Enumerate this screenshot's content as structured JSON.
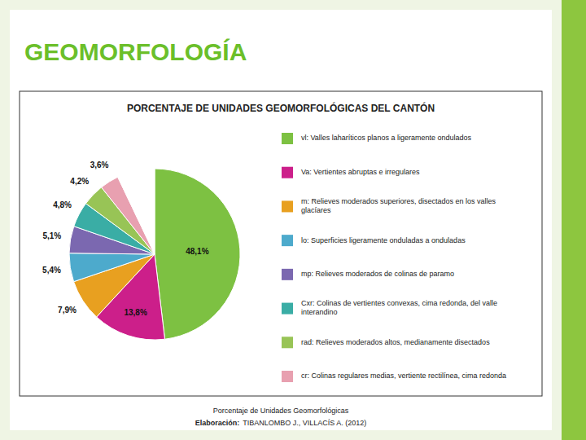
{
  "chart_data": {
    "type": "pie",
    "title": "PORCENTAJE DE UNIDADES GEOMORFOLÓGICAS DEL CANTÓN",
    "subtitle": "GEOMORFOLOGÍA",
    "annotations": [
      "Porcentaje de Unidades Geomorfológicas",
      "Elaboración:",
      "TIBANLOMBO J., VILLACÍS A. (2012)"
    ],
    "categories": [
      "vl: Valles laharíticos planos a ligeramente ondulados",
      "Va: Vertientes abruptas e irregulares",
      "m: Relieves moderados superiores, disectados en los valles\nglacíares",
      "lo: Superficies ligeramente onduladas a onduladas",
      "mp: Relieves moderados de colinas de paramo",
      "Cxr: Colinas de vertientes convexas, cima redonda, del valle\ninterandino",
      "rad: Relieves moderados altos, medianamente disectados",
      "cr: Colinas regulares medias, vertiente rectilínea, cima redonda",
      null
    ],
    "values": [
      48.1,
      13.8,
      7.9,
      5.4,
      5.1,
      4.8,
      4.2,
      3.6,
      7.1
    ],
    "value_labels": [
      "48,1%",
      "13,8%",
      "7,9%",
      "5,4%",
      "5,1%",
      "4,8%",
      "4,2%",
      "3,6%",
      null
    ],
    "colors": [
      "#7DC142",
      "#CC1F8A",
      "#E8A020",
      "#4DAACC",
      "#7B68B0",
      "#3AADA5",
      "#98C456",
      "#E8A0B0",
      "#FFFFFF"
    ],
    "data_labels": true
  }
}
